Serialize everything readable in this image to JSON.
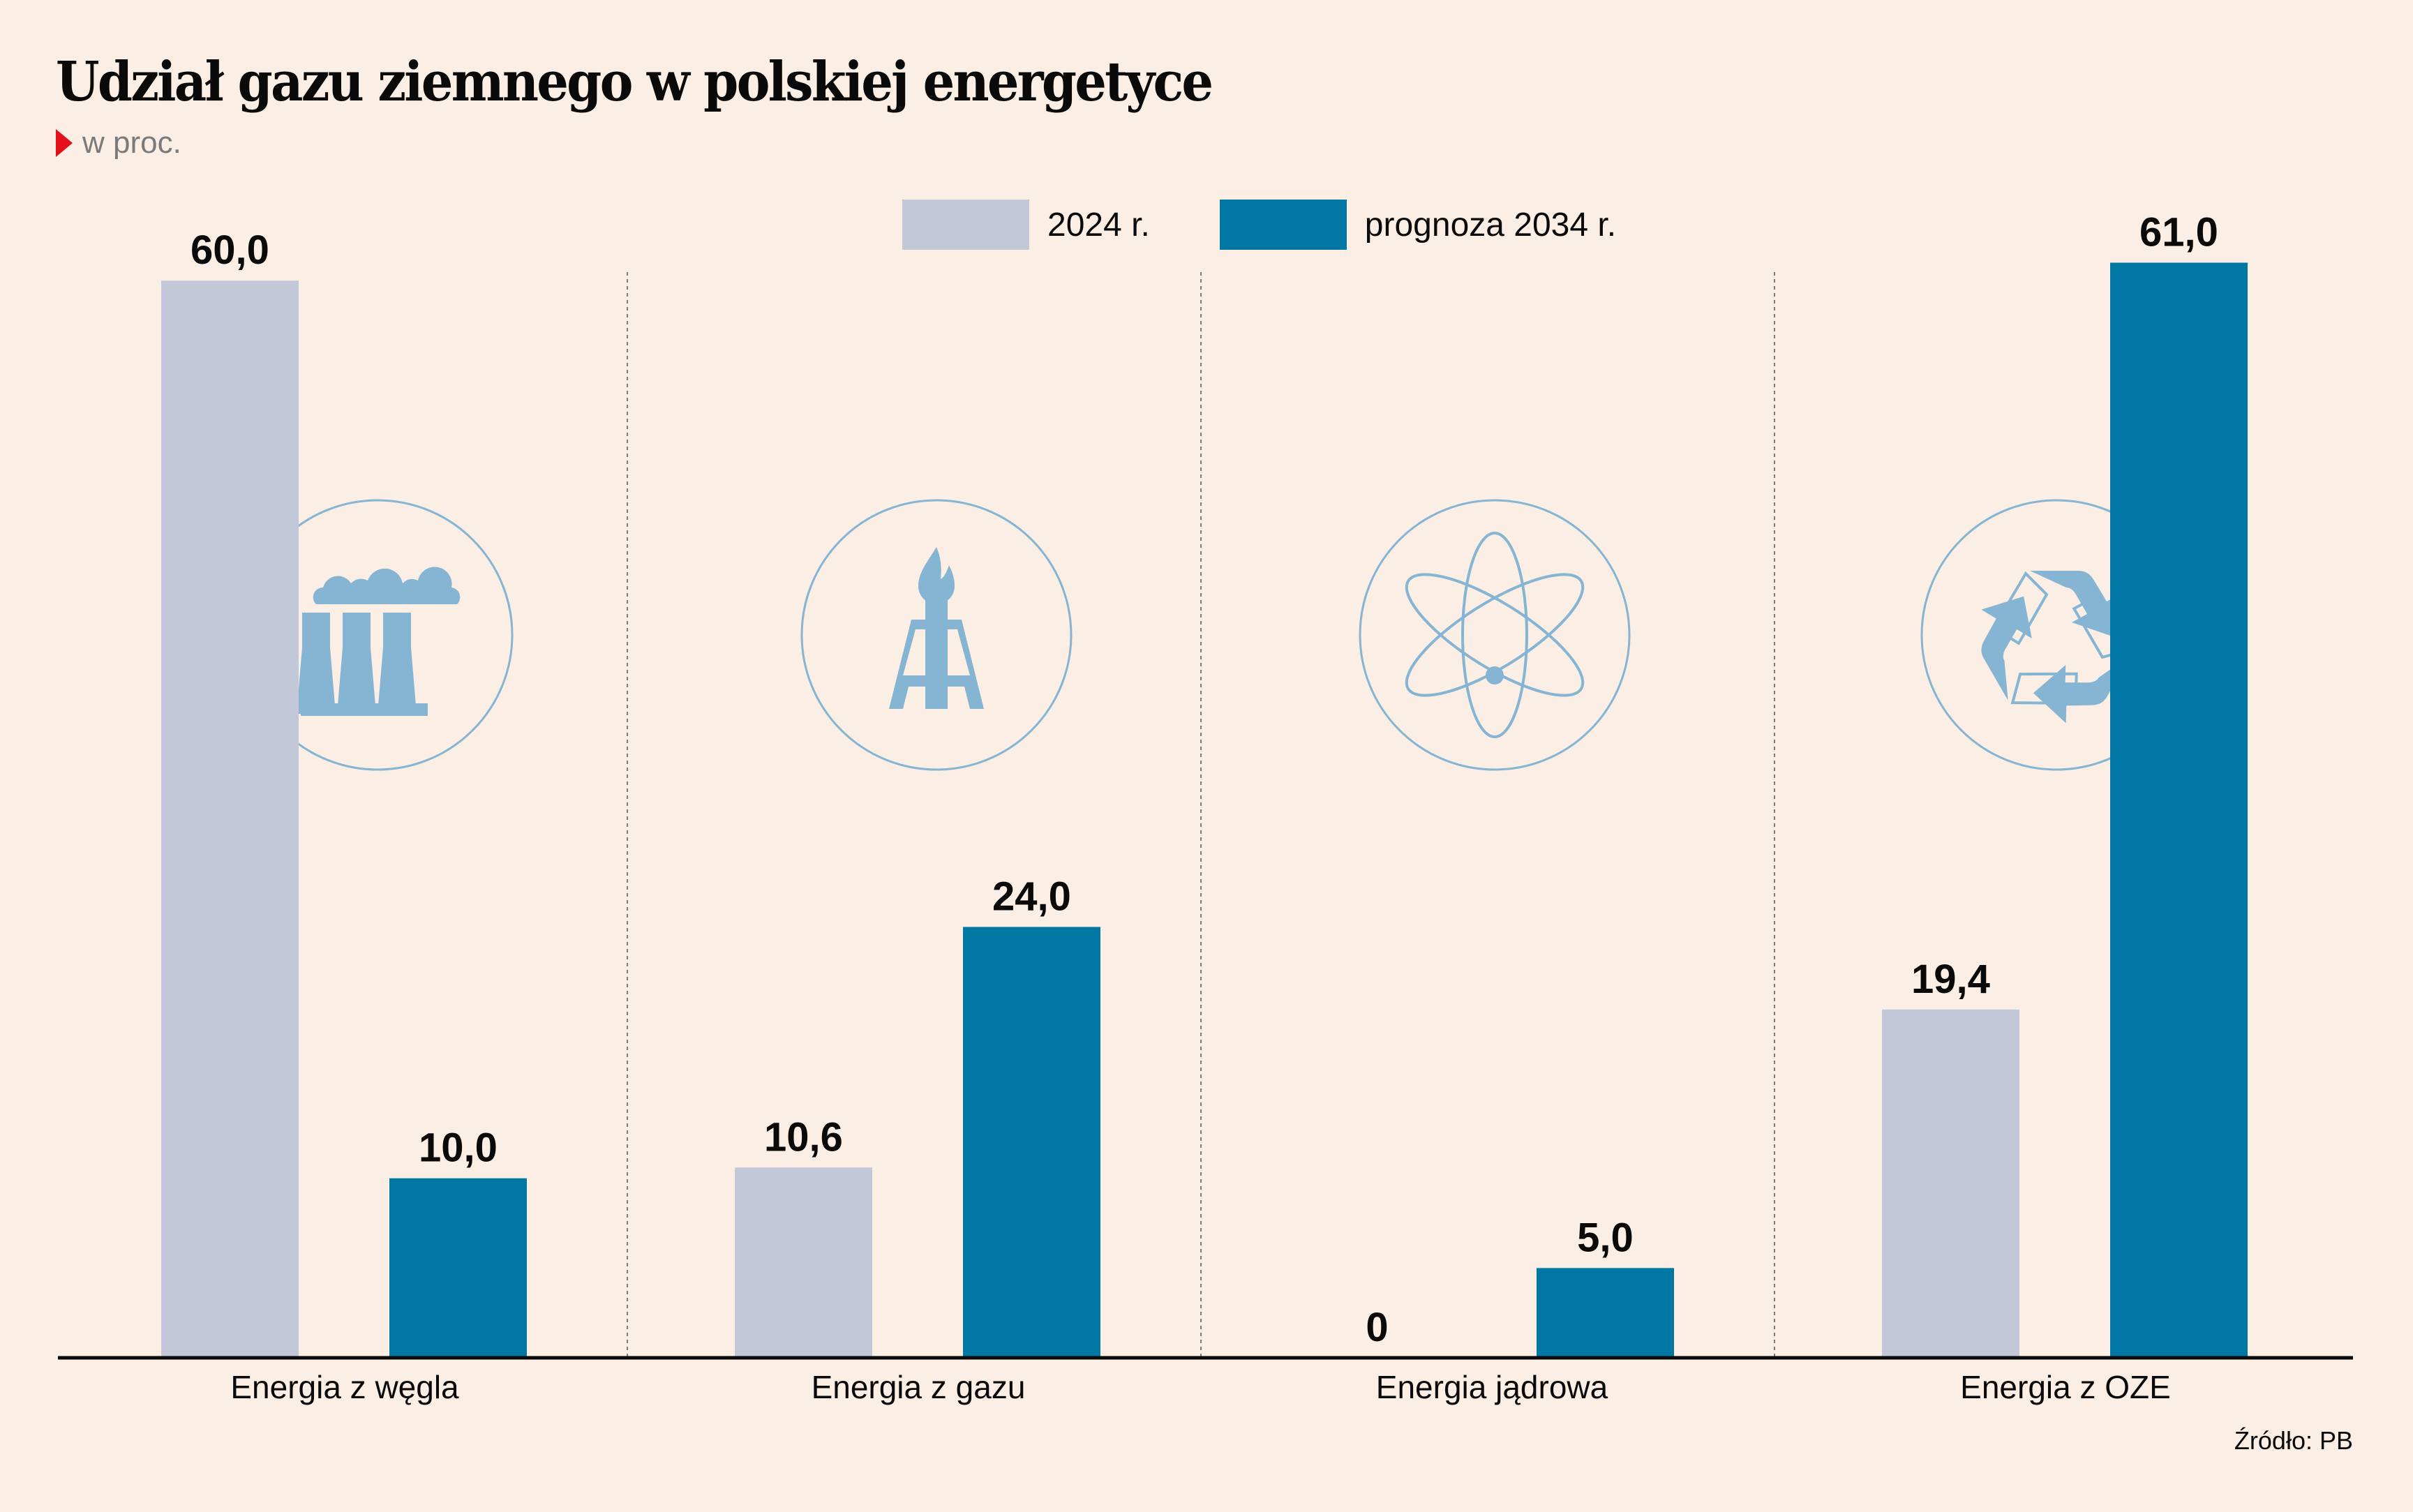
{
  "title": "Udział gazu ziemnego w polskiej energetyce",
  "subtitle": "w proc.",
  "source": "Źródło: PB",
  "colors": {
    "background": "#fbeee4",
    "series_2024": "#c2c8d8",
    "series_2034": "#0078a3",
    "icon": "#85b5d3",
    "accent": "#e3101a"
  },
  "legend": [
    {
      "label": "2024 r.",
      "color": "#c2c8d8"
    },
    {
      "label": "prognoza 2034 r.",
      "color": "#0078a3"
    }
  ],
  "chart_data": {
    "type": "bar",
    "title": "Udział gazu ziemnego w polskiej energetyce",
    "subtitle": "w proc.",
    "xlabel": "",
    "ylabel": "w proc.",
    "ylim": [
      0,
      61
    ],
    "grid": false,
    "legend_position": "top-center",
    "categories": [
      "Energia z węgla",
      "Energia z gazu",
      "Energia jądrowa",
      "Energia z OZE"
    ],
    "category_icons": [
      "power-plant-icon",
      "gas-rig-icon",
      "atom-icon",
      "recycle-icon"
    ],
    "series": [
      {
        "name": "2024 r.",
        "values": [
          60.0,
          10.6,
          0,
          19.4
        ],
        "labels": [
          "60,0",
          "10,6",
          "0",
          "19,4"
        ]
      },
      {
        "name": "prognoza 2034 r.",
        "values": [
          10.0,
          24.0,
          5.0,
          61.0
        ],
        "labels": [
          "10,0",
          "24,0",
          "5,0",
          "61,0"
        ]
      }
    ]
  }
}
